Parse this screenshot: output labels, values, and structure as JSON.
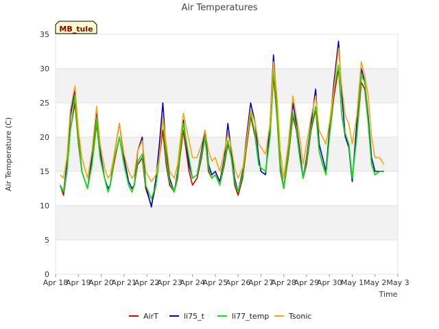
{
  "chart_data": {
    "type": "line",
    "title": "Air Temperatures",
    "xlabel": "Time",
    "ylabel": "Air Temperature (C)",
    "site_badge": "MB_tule",
    "ylim": [
      0,
      35
    ],
    "yticks": [
      0,
      5,
      10,
      15,
      20,
      25,
      30,
      35
    ],
    "xlim_days": [
      0,
      15
    ],
    "x_tick_labels": [
      "Apr 18",
      "Apr 19",
      "Apr 20",
      "Apr 21",
      "Apr 22",
      "Apr 23",
      "Apr 24",
      "Apr 25",
      "Apr 26",
      "Apr 27",
      "Apr 28",
      "Apr 29",
      "Apr 30",
      "May 1",
      "May 2",
      "May 3"
    ],
    "series_colors": {
      "AirT": "#dd0000",
      "li75_t": "#0000cc",
      "li77_temp": "#00ee00",
      "Tsonic": "#ffa500"
    },
    "series": [
      {
        "name": "AirT",
        "x": [
          0.2,
          0.35,
          0.5,
          0.65,
          0.85,
          1.0,
          1.15,
          1.4,
          1.6,
          1.8,
          1.95,
          2.15,
          2.3,
          2.4,
          2.55,
          2.8,
          3.0,
          3.2,
          3.35,
          3.45,
          3.6,
          3.8,
          3.95,
          4.2,
          4.4,
          4.55,
          4.7,
          4.85,
          5.0,
          5.2,
          5.35,
          5.45,
          5.6,
          5.85,
          6.0,
          6.2,
          6.4,
          6.55,
          6.7,
          6.85,
          7.0,
          7.2,
          7.4,
          7.55,
          7.7,
          7.85,
          8.0,
          8.2,
          8.35,
          8.55,
          8.75,
          8.9,
          9.0,
          9.2,
          9.4,
          9.55,
          9.7,
          9.85,
          10.0,
          10.2,
          10.4,
          10.55,
          10.7,
          10.85,
          11.0,
          11.2,
          11.4,
          11.55,
          11.7,
          11.85,
          12.0,
          12.2,
          12.4,
          12.55,
          12.7,
          12.85,
          13.0,
          13.2,
          13.4,
          13.55,
          13.7,
          13.85,
          14.0,
          14.2,
          14.4
        ],
        "values": [
          13,
          11.5,
          15,
          21,
          25,
          19,
          15,
          12.5,
          16,
          22,
          17,
          14,
          12,
          13,
          16,
          20,
          16,
          13,
          12,
          13,
          16,
          17,
          12.5,
          10,
          13,
          17,
          21,
          16,
          13,
          12,
          14,
          17,
          21,
          15,
          13,
          14,
          17,
          20,
          15,
          14,
          14.5,
          13,
          16,
          19,
          17,
          13,
          11.5,
          14,
          18,
          23,
          20,
          16,
          15.5,
          15,
          20,
          29,
          23,
          15,
          12.5,
          17,
          23,
          21,
          17,
          14,
          16,
          21,
          24,
          18,
          16,
          14.5,
          20,
          26,
          30,
          23,
          20,
          19,
          14,
          20,
          28,
          27,
          22,
          16,
          14.5,
          15,
          15
        ]
      },
      {
        "name": "li75_t",
        "x": [
          0.2,
          0.35,
          0.5,
          0.65,
          0.85,
          1.0,
          1.15,
          1.4,
          1.6,
          1.8,
          1.95,
          2.15,
          2.3,
          2.4,
          2.55,
          2.8,
          3.0,
          3.2,
          3.35,
          3.45,
          3.6,
          3.8,
          3.95,
          4.2,
          4.4,
          4.55,
          4.7,
          4.85,
          5.0,
          5.2,
          5.35,
          5.45,
          5.6,
          5.85,
          6.0,
          6.2,
          6.4,
          6.55,
          6.7,
          6.85,
          7.0,
          7.2,
          7.4,
          7.55,
          7.7,
          7.85,
          8.0,
          8.2,
          8.35,
          8.55,
          8.75,
          8.9,
          9.0,
          9.2,
          9.4,
          9.55,
          9.7,
          9.85,
          10.0,
          10.2,
          10.4,
          10.55,
          10.7,
          10.85,
          11.0,
          11.2,
          11.4,
          11.55,
          11.7,
          11.85,
          12.0,
          12.2,
          12.4,
          12.55,
          12.7,
          12.85,
          13.0,
          13.2,
          13.4,
          13.55,
          13.7,
          13.85,
          14.0,
          14.2,
          14.4
        ],
        "values": [
          13,
          12,
          16,
          23,
          27,
          20,
          15,
          12.5,
          17,
          24,
          18,
          14,
          12.5,
          13,
          17,
          22,
          17,
          13.5,
          12.5,
          13,
          18,
          20,
          13,
          9.8,
          14,
          19,
          25,
          18,
          14,
          12,
          15,
          18,
          22.5,
          16,
          14,
          14.5,
          18,
          21,
          16,
          14.5,
          15,
          13.5,
          17,
          22,
          18,
          14,
          12,
          15,
          19.5,
          25,
          22,
          17,
          15,
          14.5,
          22,
          32,
          25,
          16,
          12.5,
          18,
          25,
          22,
          18,
          14,
          17,
          22,
          27,
          19,
          17,
          15,
          21,
          28,
          34,
          26,
          20,
          18.5,
          13.5,
          22,
          30,
          28,
          23,
          17,
          15,
          15,
          15
        ]
      },
      {
        "name": "li77_temp",
        "x": [
          0.2,
          0.35,
          0.5,
          0.65,
          0.85,
          1.0,
          1.15,
          1.4,
          1.6,
          1.8,
          1.95,
          2.15,
          2.3,
          2.4,
          2.55,
          2.8,
          3.0,
          3.2,
          3.35,
          3.45,
          3.6,
          3.8,
          3.95,
          4.2,
          4.4,
          4.55,
          4.7,
          4.85,
          5.0,
          5.2,
          5.35,
          5.45,
          5.6,
          5.85,
          6.0,
          6.2,
          6.4,
          6.55,
          6.7,
          6.85,
          7.0,
          7.2,
          7.4,
          7.55,
          7.7,
          7.85,
          8.0,
          8.2,
          8.35,
          8.55,
          8.75,
          8.9,
          9.0,
          9.2,
          9.4,
          9.55,
          9.7,
          9.85,
          10.0,
          10.2,
          10.4,
          10.55,
          10.7,
          10.85,
          11.0,
          11.2,
          11.4,
          11.55,
          11.7,
          11.85,
          12.0,
          12.2,
          12.4,
          12.55,
          12.7,
          12.85,
          13.0,
          13.2,
          13.4,
          13.55,
          13.7,
          13.85,
          14.0,
          14.2,
          14.4
        ],
        "values": [
          13,
          12,
          15,
          21,
          26,
          19.5,
          15,
          12.5,
          16,
          22.5,
          17,
          14,
          12,
          13,
          16.5,
          20,
          16,
          13,
          12,
          13,
          16.5,
          17.5,
          13,
          11,
          13,
          17,
          23,
          17,
          13.5,
          12,
          14.5,
          17.5,
          22,
          17,
          14,
          14.5,
          17.5,
          20,
          15.5,
          14,
          14.5,
          13,
          16.5,
          19.5,
          17,
          13.5,
          12,
          14.5,
          18.5,
          23.5,
          20.5,
          16,
          15.5,
          15,
          20,
          30,
          23.5,
          15.5,
          12.5,
          17.5,
          23.5,
          21.5,
          17,
          14,
          16.5,
          21.5,
          24.5,
          18,
          16,
          14.5,
          20,
          27,
          30.5,
          23,
          20.5,
          19,
          14,
          20,
          29,
          28,
          22,
          16,
          14.5,
          15,
          15
        ]
      },
      {
        "name": "Tsonic",
        "x": [
          0.2,
          0.35,
          0.5,
          0.65,
          0.85,
          1.0,
          1.15,
          1.4,
          1.6,
          1.8,
          1.95,
          2.15,
          2.3,
          2.4,
          2.55,
          2.8,
          3.0,
          3.2,
          3.35,
          3.45,
          3.6,
          3.8,
          3.95,
          4.2,
          4.4,
          4.55,
          4.7,
          4.85,
          5.0,
          5.2,
          5.35,
          5.45,
          5.6,
          5.85,
          6.0,
          6.2,
          6.4,
          6.55,
          6.7,
          6.85,
          7.0,
          7.2,
          7.4,
          7.55,
          7.7,
          7.85,
          8.0,
          8.2,
          8.35,
          8.55,
          8.75,
          8.9,
          9.0,
          9.2,
          9.4,
          9.55,
          9.7,
          9.85,
          10.0,
          10.2,
          10.4,
          10.55,
          10.7,
          10.85,
          11.0,
          11.2,
          11.4,
          11.55,
          11.7,
          11.85,
          12.0,
          12.2,
          12.4,
          12.55,
          12.7,
          12.85,
          13.0,
          13.2,
          13.4,
          13.55,
          13.7,
          13.85,
          14.0,
          14.2,
          14.4
        ],
        "values": [
          14.5,
          14,
          17,
          24,
          27.5,
          21,
          17,
          14,
          18,
          24.5,
          19,
          15.5,
          14,
          14.5,
          17,
          22,
          17.5,
          15,
          14,
          14.5,
          18,
          19.5,
          15,
          13.5,
          14.5,
          17,
          23,
          19,
          15,
          14,
          16,
          19,
          23.5,
          19.5,
          17,
          17,
          19,
          21,
          18,
          16.5,
          17,
          15,
          18,
          20.5,
          18.5,
          15.5,
          14,
          15.5,
          19,
          24,
          22,
          19,
          18.5,
          17.5,
          22,
          31,
          26,
          18,
          14,
          19,
          26,
          23,
          20,
          16,
          19,
          23,
          26,
          21,
          20,
          19,
          22,
          27,
          33,
          27,
          23,
          22,
          19,
          23,
          31,
          29,
          26,
          20,
          17,
          17,
          16
        ]
      }
    ]
  }
}
